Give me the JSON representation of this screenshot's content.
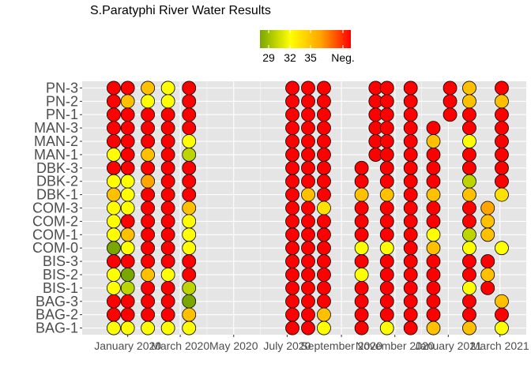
{
  "chart_data": {
    "type": "scatter",
    "title": "S.Paratyphi River Water Results",
    "xlabel": "",
    "ylabel": "",
    "legend": {
      "position": "top",
      "labels": [
        "29",
        "32",
        "35",
        "Neg."
      ],
      "gradient_colors": [
        "#7aa600",
        "#ffff00",
        "#ffa500",
        "#ff0000"
      ]
    },
    "colors": {
      "panel_bg": "#e5e5e5",
      "grid": "#ffffff",
      "point_stroke": "#000000",
      "Neg.": "#ff0000",
      "36": "#ff8c00",
      "35": "#ffa500",
      "34": "#ffc000",
      "33": "#ffe000",
      "32": "#ffff00",
      "31": "#e6f000",
      "30": "#bcd400",
      "29": "#7aa600"
    },
    "x_ticks": [
      "January 2020",
      "March 2020",
      "May 2020",
      "July 2020",
      "September 2020",
      "November 2020",
      "January 2021",
      "March 2021"
    ],
    "x_tick_dates": [
      "2020-01-01",
      "2020-03-01",
      "2020-05-01",
      "2020-07-01",
      "2020-09-01",
      "2020-11-01",
      "2021-01-01",
      "2021-03-01"
    ],
    "xlim": [
      "2019-11-10",
      "2021-03-31"
    ],
    "sites": [
      "PN-3",
      "PN-2",
      "PN-1",
      "MAN-3",
      "MAN-2",
      "MAN-1",
      "DBK-3",
      "DBK-2",
      "DBK-1",
      "COM-3",
      "COM-2",
      "COM-1",
      "COM-0",
      "BIS-3",
      "BIS-2",
      "BIS-1",
      "BAG-3",
      "BAG-2",
      "BAG-1"
    ],
    "dates": [
      "2019-12-16",
      "2020-01-01",
      "2020-01-24",
      "2020-02-16",
      "2020-03-11",
      "2020-07-07",
      "2020-07-25",
      "2020-08-12",
      "2020-09-24",
      "2020-10-10",
      "2020-10-23",
      "2020-11-19",
      "2020-12-15",
      "2021-01-03",
      "2021-01-25",
      "2021-02-15",
      "2021-03-03"
    ],
    "values": {
      "PN-3": [
        "Neg.",
        "Neg.",
        "34",
        "32",
        "Neg.",
        "Neg.",
        "Neg.",
        "Neg.",
        null,
        "Neg.",
        "Neg.",
        "Neg.",
        null,
        "Neg.",
        "34",
        null,
        "Neg."
      ],
      "PN-2": [
        "Neg.",
        "34",
        "32",
        "32",
        "Neg.",
        "Neg.",
        "Neg.",
        "Neg.",
        null,
        "Neg.",
        "Neg.",
        "Neg.",
        null,
        "Neg.",
        "34",
        null,
        "34"
      ],
      "PN-1": [
        "Neg.",
        "Neg.",
        "Neg.",
        "Neg.",
        "Neg.",
        "Neg.",
        "Neg.",
        "Neg.",
        null,
        "Neg.",
        "Neg.",
        "Neg.",
        null,
        "Neg.",
        "Neg.",
        null,
        "Neg."
      ],
      "MAN-3": [
        "Neg.",
        "Neg.",
        "Neg.",
        "Neg.",
        "Neg.",
        "Neg.",
        "Neg.",
        "Neg.",
        null,
        "Neg.",
        "Neg.",
        "Neg.",
        "Neg.",
        null,
        "Neg.",
        null,
        "Neg."
      ],
      "MAN-2": [
        "Neg.",
        "Neg.",
        "Neg.",
        "Neg.",
        "32",
        "Neg.",
        "Neg.",
        "Neg.",
        null,
        "Neg.",
        "Neg.",
        "Neg.",
        "34",
        null,
        "32",
        null,
        "Neg."
      ],
      "MAN-1": [
        "32",
        "Neg.",
        "34",
        "Neg.",
        "30",
        "Neg.",
        "Neg.",
        "Neg.",
        null,
        "Neg.",
        "Neg.",
        "Neg.",
        "Neg.",
        null,
        "Neg.",
        null,
        "Neg."
      ],
      "DBK-3": [
        "Neg.",
        "Neg.",
        "Neg.",
        "Neg.",
        "Neg.",
        "Neg.",
        "Neg.",
        "Neg.",
        "Neg.",
        null,
        "Neg.",
        "Neg.",
        "Neg.",
        null,
        "Neg.",
        null,
        "Neg."
      ],
      "DBK-2": [
        "32",
        "32",
        "35",
        "Neg.",
        "Neg.",
        "Neg.",
        "Neg.",
        "Neg.",
        "Neg.",
        null,
        "Neg.",
        "Neg.",
        "Neg.",
        null,
        "30",
        null,
        "Neg."
      ],
      "DBK-1": [
        "34",
        "32",
        "Neg.",
        "Neg.",
        "Neg.",
        "Neg.",
        "34",
        "Neg.",
        "34",
        null,
        "34",
        "Neg.",
        "34",
        null,
        "34",
        null,
        "33"
      ],
      "COM-3": [
        "32",
        "32",
        "Neg.",
        "Neg.",
        "34",
        "Neg.",
        "Neg.",
        "33",
        "Neg.",
        null,
        "Neg.",
        "Neg.",
        "Neg.",
        null,
        "Neg.",
        "35",
        null
      ],
      "COM-2": [
        "32",
        "Neg.",
        "Neg.",
        "Neg.",
        "32",
        "Neg.",
        "Neg.",
        "Neg.",
        "Neg.",
        null,
        "Neg.",
        "Neg.",
        "Neg.",
        null,
        "Neg.",
        "34",
        null
      ],
      "COM-1": [
        "32",
        "34",
        "Neg.",
        "Neg.",
        "32",
        "Neg.",
        "Neg.",
        "Neg.",
        "Neg.",
        null,
        "Neg.",
        "Neg.",
        "32",
        null,
        "30",
        "34",
        null
      ],
      "COM-0": [
        "29",
        "32",
        "Neg.",
        "Neg.",
        "32",
        "Neg.",
        "Neg.",
        "Neg.",
        "32",
        null,
        "32",
        "Neg.",
        "34",
        null,
        "32",
        null,
        "32"
      ],
      "BIS-3": [
        "Neg.",
        "Neg.",
        "Neg.",
        "Neg.",
        "Neg.",
        "Neg.",
        "Neg.",
        "Neg.",
        "Neg.",
        null,
        "Neg.",
        "Neg.",
        "Neg.",
        null,
        "Neg.",
        "Neg.",
        null
      ],
      "BIS-2": [
        "32",
        "29",
        "34",
        "32",
        "Neg.",
        "Neg.",
        "Neg.",
        "Neg.",
        "32",
        null,
        "Neg.",
        "Neg.",
        "Neg.",
        null,
        "Neg.",
        "34",
        null
      ],
      "BIS-1": [
        "32",
        "30",
        "Neg.",
        "Neg.",
        "30",
        "Neg.",
        "Neg.",
        "Neg.",
        "Neg.",
        null,
        "Neg.",
        "Neg.",
        "Neg.",
        null,
        "32",
        "Neg.",
        null
      ],
      "BAG-3": [
        "Neg.",
        "Neg.",
        "Neg.",
        "Neg.",
        "29",
        "Neg.",
        "Neg.",
        "Neg.",
        "Neg.",
        null,
        "Neg.",
        "Neg.",
        "Neg.",
        null,
        "Neg.",
        null,
        "34"
      ],
      "BAG-2": [
        "Neg.",
        "Neg.",
        "Neg.",
        "Neg.",
        "34",
        "Neg.",
        "Neg.",
        "34",
        "Neg.",
        null,
        "Neg.",
        "Neg.",
        "Neg.",
        null,
        "Neg.",
        null,
        "Neg."
      ],
      "BAG-1": [
        "32",
        "32",
        "32",
        "32",
        "32",
        "Neg.",
        "Neg.",
        "32",
        "Neg.",
        null,
        "32",
        "Neg.",
        "34",
        null,
        "34",
        null,
        "32"
      ]
    }
  }
}
